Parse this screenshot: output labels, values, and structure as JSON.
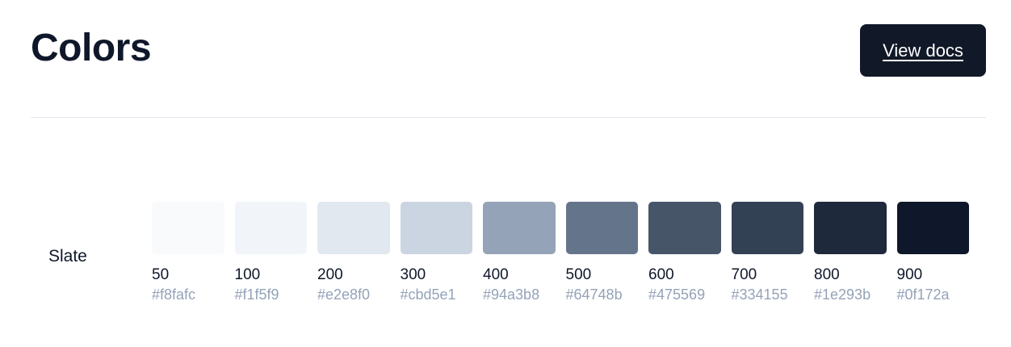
{
  "header": {
    "title": "Colors",
    "docs_button_label": "View docs"
  },
  "palette": {
    "name": "Slate",
    "shades": [
      {
        "shade": "50",
        "hex": "#f8fafc",
        "color": "#f8fafc"
      },
      {
        "shade": "100",
        "hex": "#f1f5f9",
        "color": "#f1f5f9"
      },
      {
        "shade": "200",
        "hex": "#e2e8f0",
        "color": "#e2e8f0"
      },
      {
        "shade": "300",
        "hex": "#cbd5e1",
        "color": "#cbd5e1"
      },
      {
        "shade": "400",
        "hex": "#94a3b8",
        "color": "#94a3b8"
      },
      {
        "shade": "500",
        "hex": "#64748b",
        "color": "#64748b"
      },
      {
        "shade": "600",
        "hex": "#475569",
        "color": "#475569"
      },
      {
        "shade": "700",
        "hex": "#334155",
        "color": "#334155"
      },
      {
        "shade": "800",
        "hex": "#1e293b",
        "color": "#1e293b"
      },
      {
        "shade": "900",
        "hex": "#0f172a",
        "color": "#0f172a"
      }
    ]
  },
  "colors": {
    "button_bg": "#111827",
    "divider": "#e2e8f0",
    "muted_text": "#94a3b8"
  }
}
